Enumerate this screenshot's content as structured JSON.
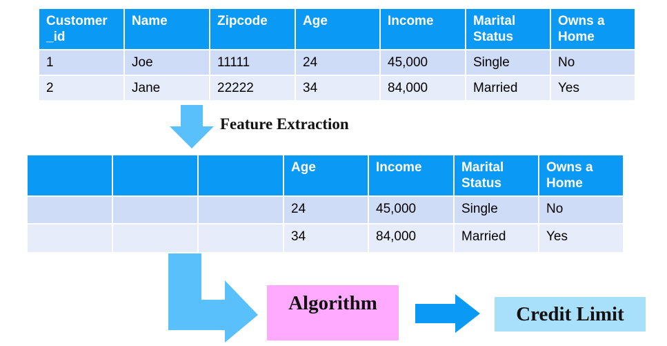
{
  "table_raw": {
    "headers": [
      "Customer _id",
      "Name",
      "Zipcode",
      "Age",
      "Income",
      "Marital Status",
      "Owns a Home"
    ],
    "rows": [
      [
        "1",
        "Joe",
        "11111",
        "24",
        "45,000",
        "Single",
        "No"
      ],
      [
        "2",
        "Jane",
        "22222",
        "34",
        "84,000",
        "Married",
        "Yes"
      ]
    ]
  },
  "step_label": "Feature Extraction",
  "table_features": {
    "headers": [
      "",
      "",
      "",
      "Age",
      "Income",
      "Marital Status",
      "Owns a Home"
    ],
    "rows": [
      [
        "",
        "",
        "",
        "24",
        "45,000",
        "Single",
        "No"
      ],
      [
        "",
        "",
        "",
        "34",
        "84,000",
        "Married",
        "Yes"
      ]
    ]
  },
  "algorithm_label": "Algorithm",
  "output_label": "Credit Limit",
  "colors": {
    "header": "#0a99f5",
    "row_odd": "#cfdcf7",
    "row_even": "#e6ecfa",
    "arrow_light": "#5ac0fc",
    "arrow_dark": "#0a99f5",
    "algorithm_box": "#ffaaff",
    "output_box": "#a8e0fb"
  }
}
